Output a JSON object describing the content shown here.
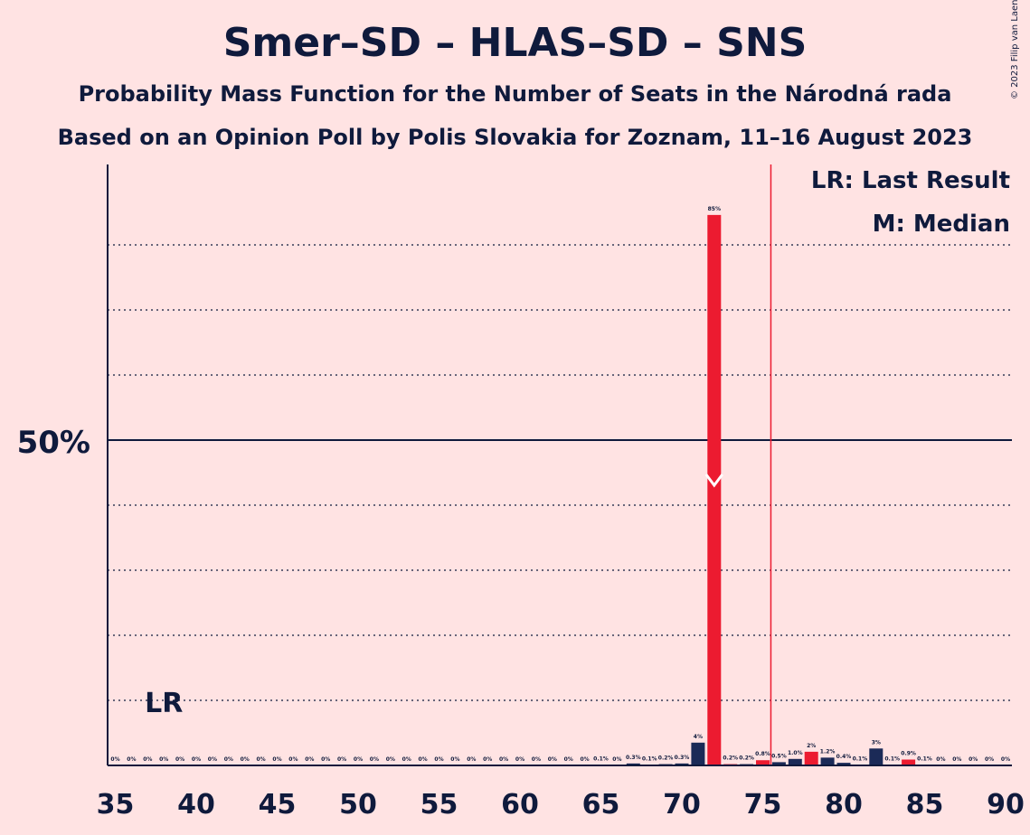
{
  "chart_data": {
    "type": "bar",
    "title": "Smer–SD – HLAS–SD – SNS",
    "subtitle_1": "Probability Mass Function for the Number of Seats in the Národná rada",
    "subtitle_2": "Based on an Opinion Poll by Polis Slovakia for Zoznam, 11–16 August 2023",
    "copyright": "© 2023 Filip van Laenen",
    "legend": {
      "lr": "LR: Last Result",
      "m": "M: Median",
      "placement": "top-right"
    },
    "y_tick_label": "50%",
    "y_tick_value": 50,
    "ylim": [
      0,
      100
    ],
    "xlim": [
      35,
      90
    ],
    "x_ticks": [
      "35",
      "40",
      "45",
      "50",
      "55",
      "60",
      "65",
      "70",
      "75",
      "80",
      "85",
      "90"
    ],
    "x_tick_values": [
      35,
      40,
      45,
      50,
      55,
      60,
      65,
      70,
      75,
      80,
      85,
      90
    ],
    "grid_lines": [
      10,
      20,
      30,
      40,
      60,
      70,
      80
    ],
    "majority_line": 75.5,
    "last_result_seat": 38,
    "last_result_label": "LR",
    "median_seat": 72,
    "bar_color_highlight": "#EC1B30",
    "bar_color_default": "#1B2A57",
    "majority_line_color": "#EC1B30",
    "seats": [
      35,
      36,
      37,
      38,
      39,
      40,
      41,
      42,
      43,
      44,
      45,
      46,
      47,
      48,
      49,
      50,
      51,
      52,
      53,
      54,
      55,
      56,
      57,
      58,
      59,
      60,
      61,
      62,
      63,
      64,
      65,
      66,
      67,
      68,
      69,
      70,
      71,
      72,
      73,
      74,
      75,
      76,
      77,
      78,
      79,
      80,
      81,
      82,
      83,
      84,
      85,
      86,
      87,
      88,
      89,
      90
    ],
    "values": [
      0,
      0,
      0,
      0,
      0,
      0,
      0,
      0,
      0,
      0,
      0,
      0,
      0,
      0,
      0,
      0,
      0,
      0,
      0,
      0,
      0,
      0,
      0,
      0,
      0,
      0,
      0,
      0,
      0,
      0,
      0.1,
      0,
      0.3,
      0.1,
      0.2,
      0.3,
      3.5,
      84.6,
      0.2,
      0.2,
      0.8,
      0.5,
      1.0,
      2.1,
      1.2,
      0.4,
      0.1,
      2.6,
      0.1,
      0.9,
      0.1,
      0,
      0,
      0,
      0,
      0
    ],
    "labels": [
      "0%",
      "0%",
      "0%",
      "0%",
      "0%",
      "0%",
      "0%",
      "0%",
      "0%",
      "0%",
      "0%",
      "0%",
      "0%",
      "0%",
      "0%",
      "0%",
      "0%",
      "0%",
      "0%",
      "0%",
      "0%",
      "0%",
      "0%",
      "0%",
      "0%",
      "0%",
      "0%",
      "0%",
      "0%",
      "0%",
      "0.1%",
      "0%",
      "0.3%",
      "0.1%",
      "0.2%",
      "0.3%",
      "4%",
      "85%",
      "0.2%",
      "0.2%",
      "0.8%",
      "0.5%",
      "1.0%",
      "2%",
      "1.2%",
      "0.4%",
      "0.1%",
      "3%",
      "0.1%",
      "0.9%",
      "0.1%",
      "0%",
      "0%",
      "0%",
      "0%",
      "0%"
    ],
    "highlight_seats": [
      72,
      73,
      75,
      78,
      84
    ]
  }
}
